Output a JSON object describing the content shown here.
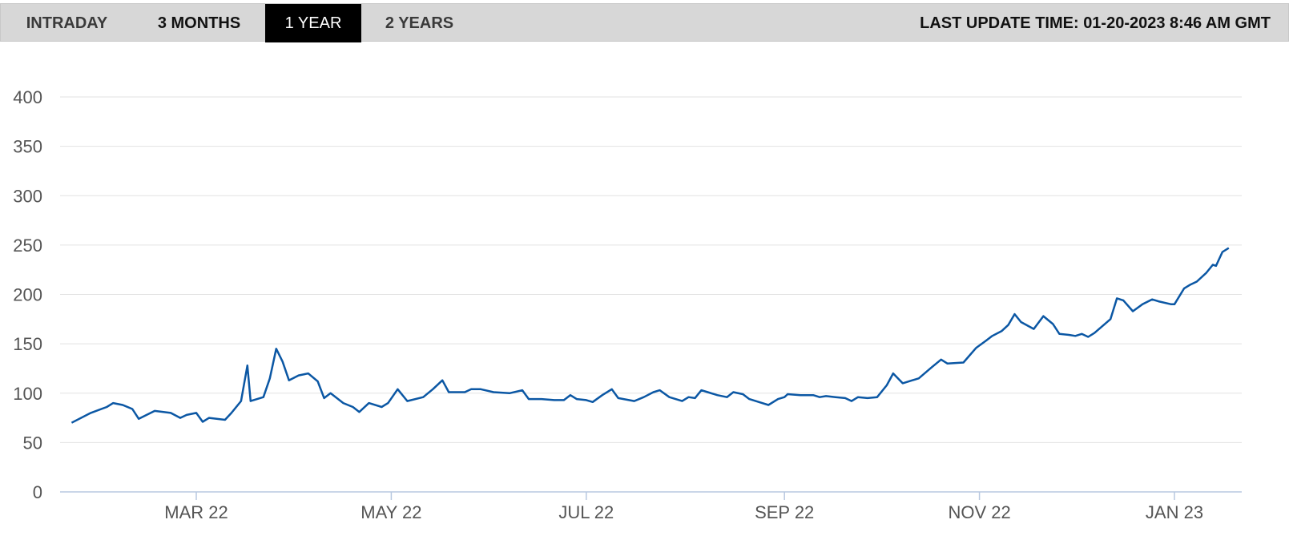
{
  "header": {
    "tabs": [
      {
        "label": "INTRADAY",
        "active": false
      },
      {
        "label": "3 MONTHS",
        "active": false
      },
      {
        "label": "1 YEAR",
        "active": true
      },
      {
        "label": "2 YEARS",
        "active": false
      }
    ],
    "last_update": "LAST UPDATE TIME: 01-20-2023 8:46 AM GMT"
  },
  "colors": {
    "line": "#0b57a4",
    "active_tab_bg": "#000000",
    "bar_bg": "#d7d7d7"
  },
  "chart_data": {
    "type": "line",
    "title": "",
    "xlabel": "",
    "ylabel": "",
    "ylim": [
      0,
      400
    ],
    "y_ticks": [
      0,
      50,
      100,
      150,
      200,
      250,
      300,
      350,
      400
    ],
    "x_tick_labels": [
      {
        "label": "MAR 22",
        "date": "2022-03-01"
      },
      {
        "label": "MAY 22",
        "date": "2022-05-01"
      },
      {
        "label": "JUL 22",
        "date": "2022-07-01"
      },
      {
        "label": "SEP 22",
        "date": "2022-09-01"
      },
      {
        "label": "NOV 22",
        "date": "2022-11-01"
      },
      {
        "label": "JAN 23",
        "date": "2023-01-01"
      }
    ],
    "xlim": [
      "2022-01-20",
      "2023-01-20"
    ],
    "grid": true,
    "series": [
      {
        "points": [
          [
            "2022-01-21",
            70
          ],
          [
            "2022-01-27",
            80
          ],
          [
            "2022-02-01",
            86
          ],
          [
            "2022-02-03",
            90
          ],
          [
            "2022-02-06",
            88
          ],
          [
            "2022-02-09",
            84
          ],
          [
            "2022-02-11",
            74
          ],
          [
            "2022-02-16",
            82
          ],
          [
            "2022-02-21",
            80
          ],
          [
            "2022-02-24",
            75
          ],
          [
            "2022-02-26",
            78
          ],
          [
            "2022-03-01",
            80
          ],
          [
            "2022-03-03",
            71
          ],
          [
            "2022-03-05",
            75
          ],
          [
            "2022-03-10",
            73
          ],
          [
            "2022-03-12",
            80
          ],
          [
            "2022-03-15",
            92
          ],
          [
            "2022-03-17",
            128
          ],
          [
            "2022-03-18",
            92
          ],
          [
            "2022-03-22",
            96
          ],
          [
            "2022-03-24",
            115
          ],
          [
            "2022-03-26",
            145
          ],
          [
            "2022-03-28",
            132
          ],
          [
            "2022-03-30",
            113
          ],
          [
            "2022-04-02",
            118
          ],
          [
            "2022-04-05",
            120
          ],
          [
            "2022-04-08",
            112
          ],
          [
            "2022-04-10",
            95
          ],
          [
            "2022-04-12",
            100
          ],
          [
            "2022-04-16",
            90
          ],
          [
            "2022-04-19",
            86
          ],
          [
            "2022-04-21",
            81
          ],
          [
            "2022-04-24",
            90
          ],
          [
            "2022-04-28",
            86
          ],
          [
            "2022-04-30",
            90
          ],
          [
            "2022-05-03",
            104
          ],
          [
            "2022-05-06",
            92
          ],
          [
            "2022-05-11",
            96
          ],
          [
            "2022-05-14",
            104
          ],
          [
            "2022-05-17",
            113
          ],
          [
            "2022-05-19",
            101
          ],
          [
            "2022-05-24",
            101
          ],
          [
            "2022-05-26",
            104
          ],
          [
            "2022-05-29",
            104
          ],
          [
            "2022-06-02",
            101
          ],
          [
            "2022-06-07",
            100
          ],
          [
            "2022-06-11",
            103
          ],
          [
            "2022-06-13",
            94
          ],
          [
            "2022-06-17",
            94
          ],
          [
            "2022-06-21",
            93
          ],
          [
            "2022-06-24",
            93
          ],
          [
            "2022-06-26",
            98
          ],
          [
            "2022-06-28",
            94
          ],
          [
            "2022-07-01",
            93
          ],
          [
            "2022-07-03",
            91
          ],
          [
            "2022-07-06",
            98
          ],
          [
            "2022-07-09",
            104
          ],
          [
            "2022-07-11",
            95
          ],
          [
            "2022-07-16",
            92
          ],
          [
            "2022-07-19",
            96
          ],
          [
            "2022-07-22",
            101
          ],
          [
            "2022-07-24",
            103
          ],
          [
            "2022-07-27",
            96
          ],
          [
            "2022-07-31",
            92
          ],
          [
            "2022-08-02",
            96
          ],
          [
            "2022-08-04",
            95
          ],
          [
            "2022-08-06",
            103
          ],
          [
            "2022-08-08",
            101
          ],
          [
            "2022-08-11",
            98
          ],
          [
            "2022-08-14",
            96
          ],
          [
            "2022-08-16",
            101
          ],
          [
            "2022-08-19",
            99
          ],
          [
            "2022-08-21",
            94
          ],
          [
            "2022-08-24",
            91
          ],
          [
            "2022-08-27",
            88
          ],
          [
            "2022-08-30",
            94
          ],
          [
            "2022-09-01",
            96
          ],
          [
            "2022-09-02",
            99
          ],
          [
            "2022-09-06",
            98
          ],
          [
            "2022-09-10",
            98
          ],
          [
            "2022-09-12",
            96
          ],
          [
            "2022-09-14",
            97
          ],
          [
            "2022-09-17",
            96
          ],
          [
            "2022-09-20",
            95
          ],
          [
            "2022-09-22",
            92
          ],
          [
            "2022-09-24",
            96
          ],
          [
            "2022-09-27",
            95
          ],
          [
            "2022-09-30",
            96
          ],
          [
            "2022-10-03",
            108
          ],
          [
            "2022-10-05",
            120
          ],
          [
            "2022-10-08",
            110
          ],
          [
            "2022-10-11",
            113
          ],
          [
            "2022-10-13",
            115
          ],
          [
            "2022-10-17",
            126
          ],
          [
            "2022-10-20",
            134
          ],
          [
            "2022-10-22",
            130
          ],
          [
            "2022-10-27",
            131
          ],
          [
            "2022-10-31",
            146
          ],
          [
            "2022-11-03",
            153
          ],
          [
            "2022-11-05",
            158
          ],
          [
            "2022-11-08",
            163
          ],
          [
            "2022-11-10",
            169
          ],
          [
            "2022-11-12",
            180
          ],
          [
            "2022-11-14",
            172
          ],
          [
            "2022-11-18",
            165
          ],
          [
            "2022-11-21",
            178
          ],
          [
            "2022-11-24",
            170
          ],
          [
            "2022-11-26",
            160
          ],
          [
            "2022-11-29",
            159
          ],
          [
            "2022-12-01",
            158
          ],
          [
            "2022-12-03",
            160
          ],
          [
            "2022-12-05",
            157
          ],
          [
            "2022-12-07",
            161
          ],
          [
            "2022-12-12",
            175
          ],
          [
            "2022-12-14",
            196
          ],
          [
            "2022-12-16",
            194
          ],
          [
            "2022-12-19",
            183
          ],
          [
            "2022-12-22",
            190
          ],
          [
            "2022-12-25",
            195
          ],
          [
            "2022-12-27",
            193
          ],
          [
            "2022-12-31",
            190
          ],
          [
            "2023-01-01",
            190
          ],
          [
            "2023-01-04",
            206
          ],
          [
            "2023-01-06",
            210
          ],
          [
            "2023-01-08",
            213
          ],
          [
            "2023-01-11",
            222
          ],
          [
            "2023-01-13",
            230
          ],
          [
            "2023-01-14",
            229
          ],
          [
            "2023-01-16",
            243
          ],
          [
            "2023-01-18",
            247
          ]
        ],
        "values_recent_note": ""
      }
    ]
  }
}
